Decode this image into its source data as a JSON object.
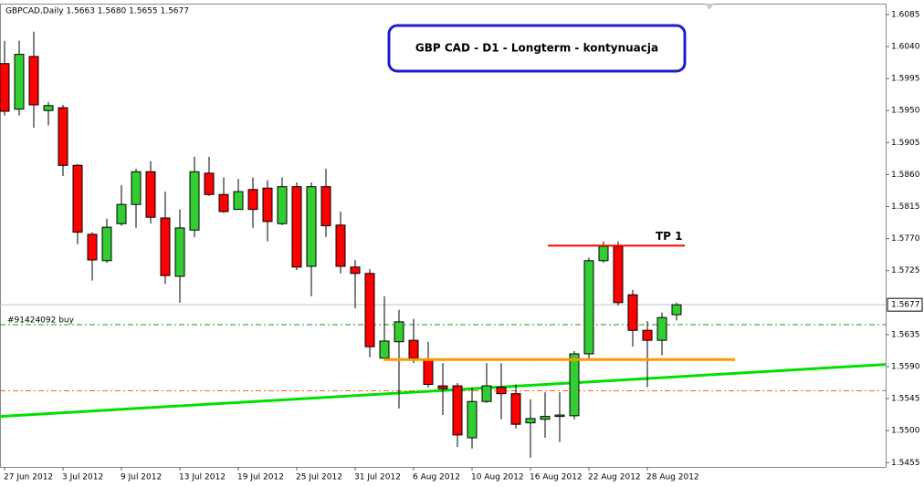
{
  "chart_data": {
    "type": "candlestick",
    "header": "GBPCAD,Daily  1.5663 1.5680 1.5655 1.5677",
    "annotation": "GBP CAD - D1 - Longterm - kontynuacja",
    "categories": [
      "27 Jun 2012",
      null,
      null,
      null,
      "3 Jul 2012",
      null,
      null,
      null,
      "9 Jul 2012",
      null,
      null,
      null,
      "13 Jul 2012",
      null,
      null,
      null,
      "19 Jul 2012",
      null,
      null,
      null,
      "25 Jul 2012",
      null,
      null,
      null,
      "31 Jul 2012",
      null,
      null,
      null,
      "6 Aug 2012",
      null,
      null,
      null,
      "10 Aug 2012",
      null,
      null,
      null,
      "16 Aug 2012",
      null,
      null,
      null,
      "22 Aug 2012",
      null,
      null,
      null,
      "28 Aug 2012",
      null,
      null
    ],
    "open": [
      1.6016,
      1.5952,
      1.6026,
      1.595,
      1.5954,
      1.5873,
      1.5776,
      1.5739,
      1.5791,
      1.5818,
      1.5864,
      1.5799,
      1.5717,
      1.5782,
      1.5862,
      1.5832,
      1.5811,
      1.5839,
      1.5841,
      1.5791,
      1.5843,
      1.5731,
      1.5843,
      1.5789,
      1.573,
      1.5721,
      1.5602,
      1.5625,
      1.5627,
      1.5599,
      1.5563,
      1.5563,
      1.549,
      1.5541,
      1.5561,
      1.5552,
      1.5511,
      1.5516,
      1.552,
      1.5521,
      1.5608,
      1.5739,
      1.5759,
      1.5691,
      1.5641,
      1.5627,
      1.5663
    ],
    "high": [
      1.6048,
      1.6048,
      1.6061,
      1.5962,
      1.5958,
      1.5875,
      1.5779,
      1.5798,
      1.5845,
      1.5868,
      1.5879,
      1.5836,
      1.5811,
      1.5885,
      1.5885,
      1.5856,
      1.5854,
      1.5856,
      1.5852,
      1.5856,
      1.5849,
      1.5849,
      1.5868,
      1.5808,
      1.574,
      1.5727,
      1.5689,
      1.567,
      1.5657,
      1.5625,
      1.5595,
      1.5567,
      1.5561,
      1.5595,
      1.5595,
      1.5565,
      1.5544,
      1.5554,
      1.5554,
      1.5612,
      1.5743,
      1.5766,
      1.5766,
      1.5698,
      1.5654,
      1.5666,
      1.568
    ],
    "low": [
      1.5943,
      1.5943,
      1.5926,
      1.5929,
      1.5858,
      1.5762,
      1.5711,
      1.5736,
      1.5788,
      1.5785,
      1.5791,
      1.5706,
      1.568,
      1.5772,
      1.583,
      1.5806,
      1.5811,
      1.5785,
      1.5766,
      1.5789,
      1.5726,
      1.5689,
      1.5772,
      1.5721,
      1.5672,
      1.5603,
      1.5599,
      1.5531,
      1.5595,
      1.5561,
      1.5522,
      1.5477,
      1.5475,
      1.5539,
      1.5516,
      1.5503,
      1.5462,
      1.549,
      1.5484,
      1.5516,
      1.5599,
      1.5736,
      1.5676,
      1.5618,
      1.5561,
      1.5606,
      1.5655
    ],
    "close": [
      1.5949,
      1.6029,
      1.5958,
      1.5957,
      1.5873,
      1.5779,
      1.574,
      1.5786,
      1.5818,
      1.5864,
      1.58,
      1.5718,
      1.5785,
      1.5864,
      1.5832,
      1.5808,
      1.5836,
      1.5811,
      1.5794,
      1.5843,
      1.573,
      1.5843,
      1.5788,
      1.5731,
      1.5721,
      1.5618,
      1.5626,
      1.5653,
      1.5602,
      1.5565,
      1.5559,
      1.5494,
      1.5541,
      1.5563,
      1.5552,
      1.5509,
      1.5517,
      1.552,
      1.5522,
      1.5608,
      1.5739,
      1.5759,
      1.568,
      1.5641,
      1.5627,
      1.5659,
      1.5677
    ],
    "up_color": "#32cd32",
    "down_color": "#ff0000",
    "ylim": [
      1.5449,
      1.6099
    ],
    "yticks": [
      1.6085,
      {
        "value": 1.604,
        "label": "1.6040"
      },
      1.5995,
      {
        "value": 1.595,
        "label": "1.5950"
      },
      1.5905,
      {
        "value": 1.586,
        "label": "1.5860"
      },
      1.5815,
      {
        "value": 1.577,
        "label": "1.5770"
      },
      1.5725,
      1.5635,
      {
        "value": 1.559,
        "label": "1.5590"
      },
      1.5545,
      {
        "value": 1.55,
        "label": "1.5500"
      },
      1.5455
    ],
    "buy_order": {
      "label": "#91424092 buy",
      "value": 1.5649,
      "color": "#1e9a1e"
    },
    "stop_level": {
      "value": 1.5556,
      "color": "#ff5a2a"
    },
    "support_line": {
      "value": 1.56,
      "color": "#ff9900"
    },
    "tp_line": {
      "label": "TP 1",
      "value": 1.576,
      "color": "#ff0000"
    },
    "trend_line": {
      "values": [
        1.552,
        1.5593
      ],
      "color": "#00e000"
    }
  }
}
